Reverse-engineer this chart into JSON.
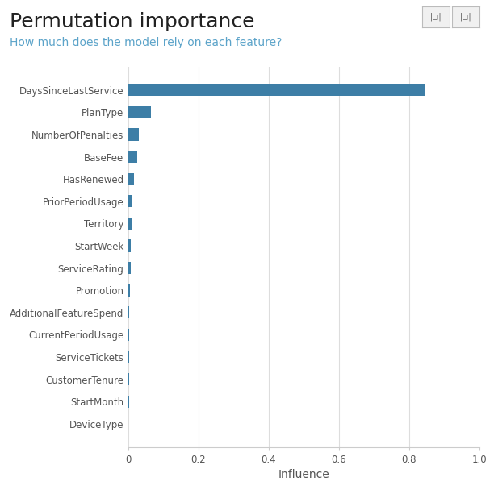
{
  "title": "Permutation importance",
  "subtitle": "How much does the model rely on each feature?",
  "xlabel": "Influence",
  "title_color": "#222222",
  "subtitle_color": "#5ba3c9",
  "bar_color": "#3d7ea6",
  "background_color": "#ffffff",
  "categories": [
    "DaysSinceLastService",
    "PlanType",
    "NumberOfPenalties",
    "BaseFee",
    "HasRenewed",
    "PriorPeriodUsage",
    "Territory",
    "StartWeek",
    "ServiceRating",
    "Promotion",
    "AdditionalFeatureSpend",
    "CurrentPeriodUsage",
    "ServiceTickets",
    "CustomerTenure",
    "StartMonth",
    "DeviceType"
  ],
  "values": [
    0.845,
    0.065,
    0.03,
    0.025,
    0.015,
    0.01,
    0.008,
    0.007,
    0.006,
    0.005,
    0.002,
    0.001,
    0.001,
    0.001,
    0.001,
    0.0
  ],
  "xlim": [
    0,
    1.0
  ],
  "xticks": [
    0,
    0.2,
    0.4,
    0.6,
    0.8,
    1.0
  ],
  "title_fontsize": 18,
  "subtitle_fontsize": 10,
  "tick_fontsize": 8.5,
  "xlabel_fontsize": 10
}
